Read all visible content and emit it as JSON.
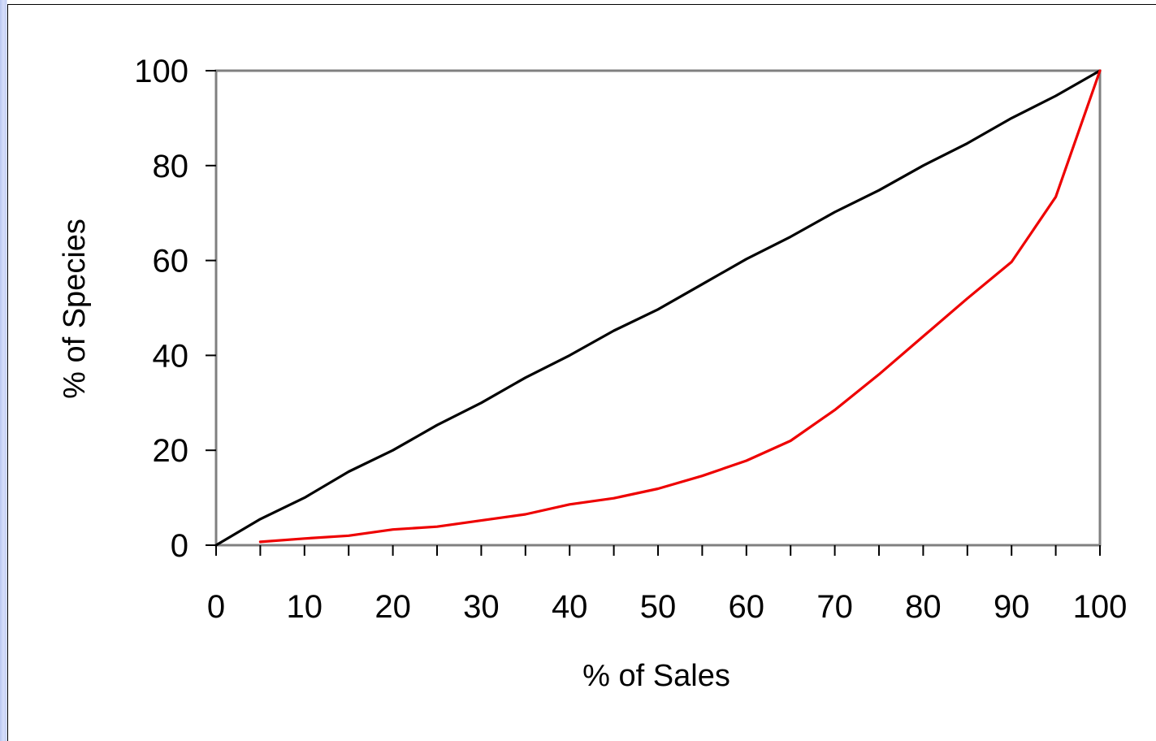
{
  "chart_data": {
    "type": "line",
    "title": "",
    "xlabel": "% of Sales",
    "ylabel": "% of Species",
    "xlim": [
      0,
      100
    ],
    "ylim": [
      0,
      100
    ],
    "x_ticks": [
      "0",
      "10",
      "20",
      "30",
      "40",
      "50",
      "60",
      "70",
      "80",
      "90",
      "100"
    ],
    "y_ticks": [
      "0",
      "20",
      "40",
      "60",
      "80",
      "100"
    ],
    "grid": false,
    "legend": "none",
    "series": [
      {
        "color": "#000000",
        "points": [
          [
            0,
            0
          ],
          [
            5,
            5.5
          ],
          [
            10,
            10
          ],
          [
            15,
            15.5
          ],
          [
            20,
            20
          ],
          [
            25,
            25.3
          ],
          [
            30,
            30
          ],
          [
            35,
            35.3
          ],
          [
            40,
            40
          ],
          [
            45,
            45.2
          ],
          [
            50,
            49.7
          ],
          [
            55,
            55
          ],
          [
            60,
            60.3
          ],
          [
            65,
            65
          ],
          [
            70,
            70.2
          ],
          [
            75,
            74.8
          ],
          [
            80,
            80
          ],
          [
            85,
            84.7
          ],
          [
            90,
            90
          ],
          [
            95,
            94.7
          ],
          [
            100,
            100
          ]
        ]
      },
      {
        "color": "#ee0000",
        "points": [
          [
            5,
            0.7
          ],
          [
            10,
            1.4
          ],
          [
            15,
            2
          ],
          [
            20,
            3.3
          ],
          [
            25,
            3.9
          ],
          [
            30,
            5.2
          ],
          [
            35,
            6.5
          ],
          [
            40,
            8.6
          ],
          [
            45,
            9.9
          ],
          [
            50,
            11.9
          ],
          [
            55,
            14.6
          ],
          [
            60,
            17.8
          ],
          [
            65,
            22
          ],
          [
            70,
            28.5
          ],
          [
            75,
            36
          ],
          [
            80,
            44
          ],
          [
            85,
            52
          ],
          [
            90,
            59.7
          ],
          [
            95,
            73.4
          ],
          [
            100,
            100
          ]
        ]
      }
    ]
  }
}
